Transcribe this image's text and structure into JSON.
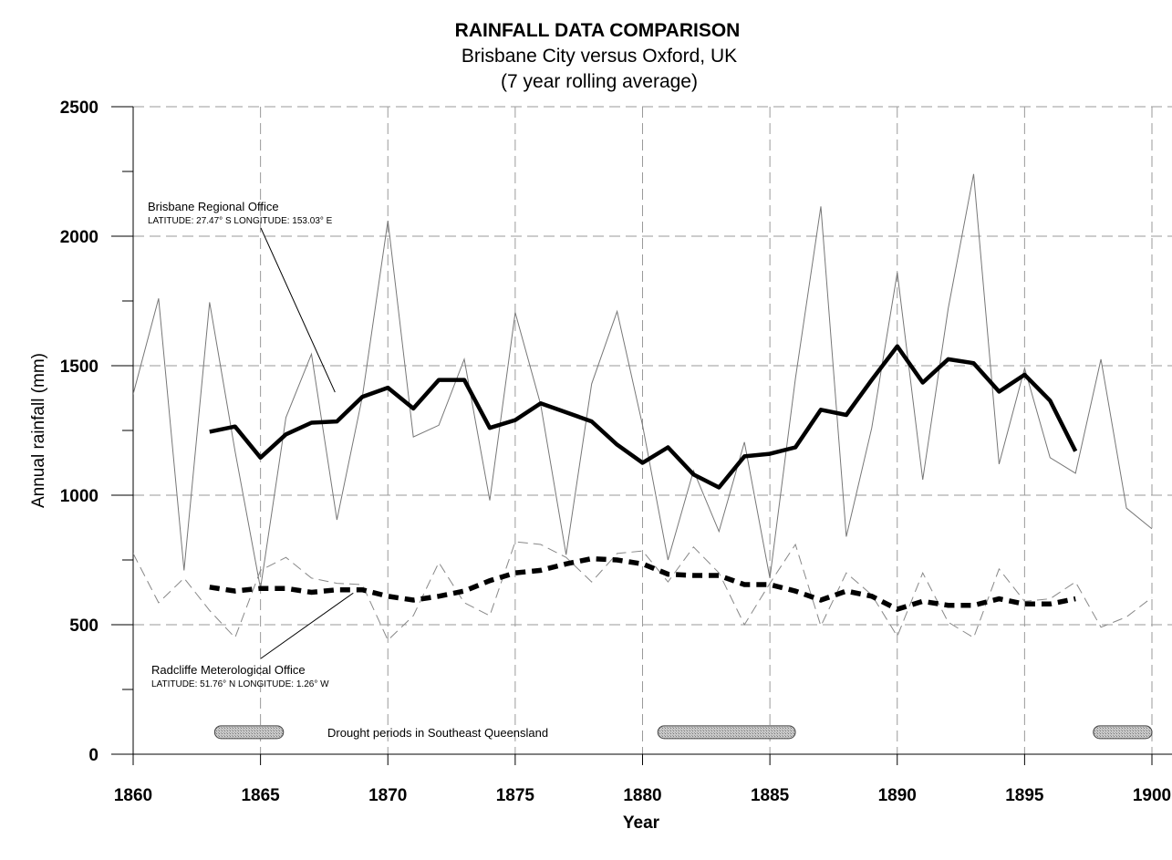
{
  "chart_data": {
    "type": "line",
    "title": "RAINFALL DATA COMPARISON",
    "subtitle_lines": [
      "Brisbane City versus Oxford, UK",
      "(7 year rolling average)"
    ],
    "xlabel": "Year",
    "ylabel": "Annual rainfall (mm)",
    "xlim": [
      1860,
      1900
    ],
    "ylim": [
      0,
      2500
    ],
    "x_ticks": [
      1860,
      1865,
      1870,
      1875,
      1880,
      1885,
      1890,
      1895,
      1900
    ],
    "x_tick_labels": [
      "1860",
      "1865",
      "1870",
      "1875",
      "1880",
      "1885",
      "1890",
      "1895",
      "1900"
    ],
    "y_ticks": [
      0,
      500,
      1000,
      1500,
      2000,
      2500
    ],
    "y_tick_labels": [
      "0",
      "500",
      "1000",
      "1500",
      "2000",
      "2500"
    ],
    "grid": "dashed",
    "series": [
      {
        "style": "thin-solid",
        "x": [
          1860,
          1861,
          1862,
          1863,
          1864,
          1865,
          1866,
          1867,
          1868,
          1869,
          1870,
          1871,
          1872,
          1873,
          1874,
          1875,
          1876,
          1877,
          1878,
          1879,
          1880,
          1881,
          1882,
          1883,
          1884,
          1885,
          1886,
          1887,
          1888,
          1889,
          1890,
          1891,
          1892,
          1893,
          1894,
          1895,
          1896,
          1897,
          1898,
          1899,
          1900
        ],
        "values": [
          1390,
          1760,
          710,
          1745,
          1170,
          640,
          1300,
          1545,
          905,
          1380,
          2060,
          1225,
          1270,
          1525,
          980,
          1705,
          1350,
          770,
          1430,
          1710,
          1270,
          750,
          1095,
          860,
          1205,
          680,
          1450,
          2115,
          840,
          1260,
          1860,
          1060,
          1720,
          2240,
          1120,
          1490,
          1145,
          1085,
          1525,
          950,
          870
        ]
      },
      {
        "style": "thin-dashed",
        "x": [
          1860,
          1861,
          1862,
          1863,
          1864,
          1865,
          1866,
          1867,
          1868,
          1869,
          1870,
          1871,
          1872,
          1873,
          1874,
          1875,
          1876,
          1877,
          1878,
          1879,
          1880,
          1881,
          1882,
          1883,
          1884,
          1885,
          1886,
          1887,
          1888,
          1889,
          1890,
          1891,
          1892,
          1893,
          1894,
          1895,
          1896,
          1897,
          1898,
          1899,
          1900
        ],
        "values": [
          775,
          585,
          680,
          555,
          450,
          710,
          760,
          680,
          660,
          655,
          440,
          535,
          740,
          585,
          535,
          820,
          810,
          760,
          665,
          775,
          785,
          665,
          800,
          700,
          500,
          660,
          810,
          495,
          700,
          615,
          455,
          700,
          510,
          450,
          715,
          590,
          600,
          665,
          490,
          530,
          605
        ]
      },
      {
        "style": "thick-solid",
        "x": [
          1863,
          1864,
          1865,
          1866,
          1867,
          1868,
          1869,
          1870,
          1871,
          1872,
          1873,
          1874,
          1875,
          1876,
          1877,
          1878,
          1879,
          1880,
          1881,
          1882,
          1883,
          1884,
          1885,
          1886,
          1887,
          1888,
          1889,
          1890,
          1891,
          1892,
          1893,
          1894,
          1895,
          1896,
          1897
        ],
        "values": [
          1245,
          1265,
          1145,
          1235,
          1280,
          1285,
          1380,
          1415,
          1335,
          1445,
          1445,
          1260,
          1290,
          1355,
          1320,
          1285,
          1195,
          1125,
          1185,
          1080,
          1030,
          1150,
          1160,
          1185,
          1330,
          1310,
          1445,
          1575,
          1435,
          1525,
          1510,
          1400,
          1465,
          1365,
          1170
        ]
      },
      {
        "style": "thick-dashed",
        "x": [
          1863,
          1864,
          1865,
          1866,
          1867,
          1868,
          1869,
          1870,
          1871,
          1872,
          1873,
          1874,
          1875,
          1876,
          1877,
          1878,
          1879,
          1880,
          1881,
          1882,
          1883,
          1884,
          1885,
          1886,
          1887,
          1888,
          1889,
          1890,
          1891,
          1892,
          1893,
          1894,
          1895,
          1896,
          1897
        ],
        "values": [
          645,
          630,
          640,
          640,
          625,
          635,
          635,
          610,
          595,
          610,
          630,
          670,
          700,
          710,
          735,
          755,
          750,
          735,
          695,
          690,
          690,
          655,
          655,
          630,
          595,
          630,
          610,
          560,
          590,
          575,
          575,
          600,
          580,
          580,
          600
        ]
      }
    ],
    "annotations": {
      "brisbane": {
        "name": "Brisbane Regional Office",
        "coords": "LATITUDE: 27.47° S   LONGITUDE: 153.03° E",
        "points_to": [
          1869,
          1380
        ]
      },
      "radcliffe": {
        "name": "Radcliffe Meterological Office",
        "coords": "LATITUDE: 51.76° N   LONGITUDE: 1.26° W",
        "points_to": [
          1869,
          640
        ]
      }
    },
    "drought_periods": {
      "label": "Drought periods in Southeast Queensland",
      "level": 85,
      "ranges": [
        [
          1863.2,
          1865.9
        ],
        [
          1880.6,
          1886.0
        ],
        [
          1897.7,
          1900
        ]
      ]
    }
  }
}
